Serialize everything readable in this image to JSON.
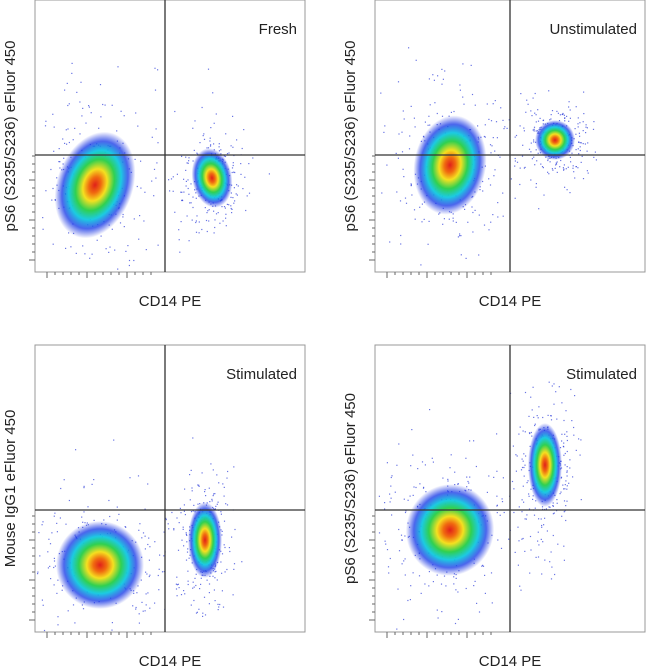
{
  "panels": [
    {
      "label": "Fresh",
      "x_label": "CD14 PE",
      "y_label": "pS6 (S235/S236) eFluor 450"
    },
    {
      "label": "Unstimulated",
      "x_label": "CD14 PE",
      "y_label": "pS6 (S235/S236) eFluor 450"
    },
    {
      "label": "Stimulated",
      "x_label": "CD14 PE",
      "y_label": "Mouse IgG1 eFluor 450"
    },
    {
      "label": "Stimulated",
      "x_label": "CD14 PE",
      "y_label": "pS6 (S235/S236) eFluor 450"
    }
  ]
}
